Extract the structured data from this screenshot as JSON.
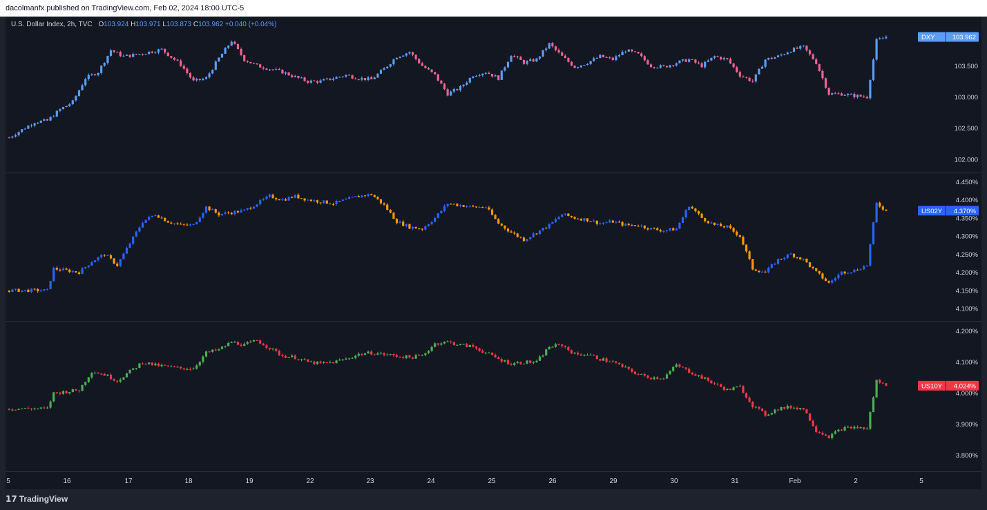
{
  "header": {
    "text": "dacolmanfx published on TradingView.com, Feb 02, 2024 18:00 UTC-5"
  },
  "legend": {
    "title": "U.S. Dollar Index, 2h, TVC",
    "o_label": "O",
    "o": "103.924",
    "h_label": "H",
    "h": "103.971",
    "l_label": "L",
    "l": "103.873",
    "c_label": "C",
    "c": "103.962",
    "change": "+0.040 (+0.04%)"
  },
  "footer": {
    "logo_mark": "17",
    "brand": "TradingView"
  },
  "colors": {
    "bg": "#131722",
    "dxy_up": "#5b9cf6",
    "dxy_down": "#f06292",
    "us02y_up": "#2962ff",
    "us02y_down": "#ff9800",
    "us10y_up": "#4caf50",
    "us10y_down": "#f23645"
  },
  "x_axis": {
    "labels": [
      "5",
      "16",
      "17",
      "18",
      "19",
      "22",
      "23",
      "24",
      "25",
      "26",
      "29",
      "30",
      "31",
      "Feb",
      "2",
      "5"
    ]
  },
  "chart_data": [
    {
      "type": "candlestick",
      "symbol": "DXY",
      "last": "103.962",
      "ylim": [
        101.9,
        104.2
      ],
      "y_ticks": [
        "103.500",
        "103.000",
        "102.500",
        "102.000"
      ],
      "close_start": 102.35,
      "close_path": [
        [
          0,
          102.35
        ],
        [
          8,
          102.6
        ],
        [
          12,
          102.62
        ],
        [
          16,
          102.8
        ],
        [
          20,
          102.92
        ],
        [
          24,
          103.3
        ],
        [
          28,
          103.4
        ],
        [
          32,
          103.75
        ],
        [
          36,
          103.65
        ],
        [
          40,
          103.68
        ],
        [
          44,
          103.72
        ],
        [
          48,
          103.76
        ],
        [
          52,
          103.6
        ],
        [
          54,
          103.52
        ],
        [
          58,
          103.25
        ],
        [
          62,
          103.3
        ],
        [
          66,
          103.62
        ],
        [
          70,
          103.9
        ],
        [
          74,
          103.6
        ],
        [
          78,
          103.5
        ],
        [
          82,
          103.45
        ],
        [
          86,
          103.4
        ],
        [
          90,
          103.32
        ],
        [
          94,
          103.25
        ],
        [
          98,
          103.25
        ],
        [
          102,
          103.3
        ],
        [
          106,
          103.35
        ],
        [
          110,
          103.3
        ],
        [
          114,
          103.28
        ],
        [
          118,
          103.45
        ],
        [
          122,
          103.65
        ],
        [
          126,
          103.72
        ],
        [
          130,
          103.5
        ],
        [
          134,
          103.35
        ],
        [
          138,
          103.05
        ],
        [
          142,
          103.15
        ],
        [
          146,
          103.35
        ],
        [
          150,
          103.4
        ],
        [
          154,
          103.3
        ],
        [
          158,
          103.68
        ],
        [
          162,
          103.55
        ],
        [
          166,
          103.6
        ],
        [
          170,
          103.85
        ],
        [
          174,
          103.65
        ],
        [
          178,
          103.48
        ],
        [
          182,
          103.55
        ],
        [
          186,
          103.65
        ],
        [
          190,
          103.6
        ],
        [
          194,
          103.75
        ],
        [
          198,
          103.68
        ],
        [
          202,
          103.5
        ],
        [
          206,
          103.48
        ],
        [
          210,
          103.55
        ],
        [
          214,
          103.6
        ],
        [
          218,
          103.5
        ],
        [
          222,
          103.65
        ],
        [
          226,
          103.6
        ],
        [
          230,
          103.35
        ],
        [
          234,
          103.25
        ],
        [
          238,
          103.6
        ],
        [
          242,
          103.65
        ],
        [
          246,
          103.75
        ],
        [
          250,
          103.8
        ],
        [
          254,
          103.55
        ],
        [
          258,
          103.05
        ],
        [
          262,
          103.05
        ],
        [
          266,
          103.02
        ],
        [
          270,
          103.0
        ],
        [
          273,
          103.9
        ],
        [
          276,
          103.962
        ]
      ]
    },
    {
      "type": "candlestick",
      "symbol": "US02Y",
      "last": "4.370%",
      "ylim": [
        4.085,
        4.46
      ],
      "y_ticks": [
        "4.450%",
        "4.400%",
        "4.350%",
        "4.300%",
        "4.250%",
        "4.200%",
        "4.150%",
        "4.100%"
      ],
      "close_start": 4.15,
      "close_path": [
        [
          0,
          4.15
        ],
        [
          12,
          4.15
        ],
        [
          14,
          4.21
        ],
        [
          22,
          4.2
        ],
        [
          26,
          4.23
        ],
        [
          30,
          4.25
        ],
        [
          34,
          4.22
        ],
        [
          38,
          4.28
        ],
        [
          42,
          4.34
        ],
        [
          46,
          4.36
        ],
        [
          50,
          4.34
        ],
        [
          54,
          4.33
        ],
        [
          58,
          4.33
        ],
        [
          62,
          4.38
        ],
        [
          66,
          4.36
        ],
        [
          70,
          4.365
        ],
        [
          74,
          4.37
        ],
        [
          78,
          4.39
        ],
        [
          82,
          4.41
        ],
        [
          86,
          4.4
        ],
        [
          90,
          4.41
        ],
        [
          94,
          4.4
        ],
        [
          98,
          4.395
        ],
        [
          102,
          4.39
        ],
        [
          106,
          4.4
        ],
        [
          110,
          4.41
        ],
        [
          114,
          4.415
        ],
        [
          118,
          4.385
        ],
        [
          122,
          4.34
        ],
        [
          126,
          4.325
        ],
        [
          130,
          4.32
        ],
        [
          134,
          4.35
        ],
        [
          138,
          4.39
        ],
        [
          142,
          4.385
        ],
        [
          146,
          4.38
        ],
        [
          150,
          4.38
        ],
        [
          154,
          4.335
        ],
        [
          158,
          4.31
        ],
        [
          162,
          4.29
        ],
        [
          166,
          4.31
        ],
        [
          170,
          4.33
        ],
        [
          174,
          4.36
        ],
        [
          178,
          4.35
        ],
        [
          182,
          4.345
        ],
        [
          186,
          4.335
        ],
        [
          190,
          4.34
        ],
        [
          194,
          4.33
        ],
        [
          198,
          4.33
        ],
        [
          202,
          4.32
        ],
        [
          206,
          4.315
        ],
        [
          210,
          4.32
        ],
        [
          214,
          4.385
        ],
        [
          218,
          4.35
        ],
        [
          222,
          4.33
        ],
        [
          226,
          4.325
        ],
        [
          230,
          4.3
        ],
        [
          234,
          4.21
        ],
        [
          238,
          4.2
        ],
        [
          242,
          4.235
        ],
        [
          246,
          4.25
        ],
        [
          250,
          4.235
        ],
        [
          254,
          4.2
        ],
        [
          258,
          4.17
        ],
        [
          262,
          4.2
        ],
        [
          266,
          4.205
        ],
        [
          270,
          4.22
        ],
        [
          273,
          4.39
        ],
        [
          276,
          4.37
        ]
      ]
    },
    {
      "type": "candlestick",
      "symbol": "US10Y",
      "last": "4.024%",
      "ylim": [
        3.77,
        4.215
      ],
      "y_ticks": [
        "4.200%",
        "4.100%",
        "4.000%",
        "3.900%",
        "3.800%"
      ],
      "close_start": 3.95,
      "close_path": [
        [
          0,
          3.95
        ],
        [
          12,
          3.95
        ],
        [
          14,
          4.0
        ],
        [
          22,
          4.01
        ],
        [
          26,
          4.07
        ],
        [
          30,
          4.06
        ],
        [
          34,
          4.04
        ],
        [
          38,
          4.07
        ],
        [
          42,
          4.1
        ],
        [
          46,
          4.09
        ],
        [
          50,
          4.085
        ],
        [
          54,
          4.08
        ],
        [
          58,
          4.08
        ],
        [
          62,
          4.13
        ],
        [
          66,
          4.14
        ],
        [
          70,
          4.165
        ],
        [
          74,
          4.155
        ],
        [
          78,
          4.17
        ],
        [
          82,
          4.145
        ],
        [
          86,
          4.12
        ],
        [
          90,
          4.115
        ],
        [
          94,
          4.1
        ],
        [
          98,
          4.095
        ],
        [
          102,
          4.1
        ],
        [
          106,
          4.11
        ],
        [
          110,
          4.125
        ],
        [
          114,
          4.13
        ],
        [
          118,
          4.125
        ],
        [
          122,
          4.12
        ],
        [
          126,
          4.115
        ],
        [
          130,
          4.12
        ],
        [
          134,
          4.16
        ],
        [
          138,
          4.165
        ],
        [
          142,
          4.155
        ],
        [
          146,
          4.15
        ],
        [
          150,
          4.13
        ],
        [
          154,
          4.11
        ],
        [
          158,
          4.095
        ],
        [
          162,
          4.1
        ],
        [
          166,
          4.1
        ],
        [
          170,
          4.15
        ],
        [
          174,
          4.155
        ],
        [
          178,
          4.125
        ],
        [
          182,
          4.125
        ],
        [
          186,
          4.11
        ],
        [
          190,
          4.1
        ],
        [
          194,
          4.08
        ],
        [
          198,
          4.06
        ],
        [
          202,
          4.05
        ],
        [
          206,
          4.05
        ],
        [
          210,
          4.09
        ],
        [
          214,
          4.07
        ],
        [
          218,
          4.05
        ],
        [
          222,
          4.03
        ],
        [
          226,
          4.01
        ],
        [
          230,
          4.02
        ],
        [
          234,
          3.96
        ],
        [
          238,
          3.93
        ],
        [
          242,
          3.95
        ],
        [
          246,
          3.955
        ],
        [
          250,
          3.95
        ],
        [
          254,
          3.88
        ],
        [
          258,
          3.86
        ],
        [
          262,
          3.885
        ],
        [
          266,
          3.89
        ],
        [
          270,
          3.885
        ],
        [
          273,
          4.04
        ],
        [
          276,
          4.024
        ]
      ]
    }
  ]
}
